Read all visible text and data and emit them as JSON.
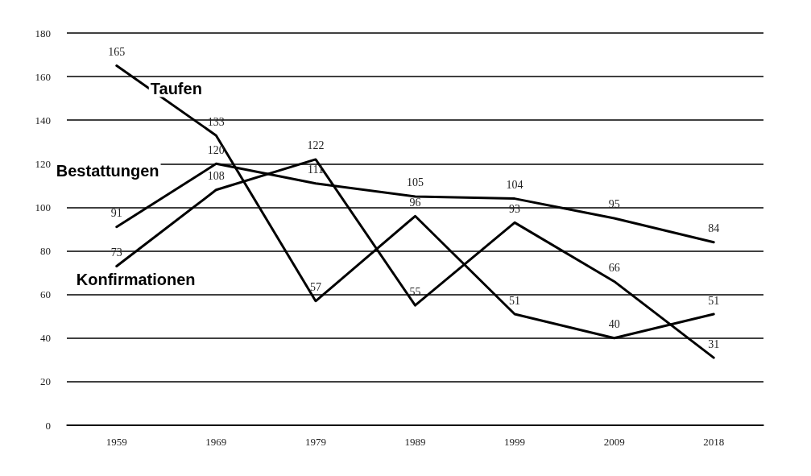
{
  "chart_data": {
    "type": "line",
    "categories": [
      "1959",
      "1969",
      "1979",
      "1989",
      "1999",
      "2009",
      "2018"
    ],
    "series": [
      {
        "name": "Taufen",
        "color": "#000000",
        "values": [
          165,
          133,
          57,
          96,
          51,
          40,
          51
        ]
      },
      {
        "name": "Bestattungen",
        "color": "#000000",
        "values": [
          91,
          120,
          111,
          105,
          104,
          95,
          84
        ]
      },
      {
        "name": "Konfirmationen",
        "color": "#000000",
        "values": [
          73,
          108,
          122,
          55,
          93,
          66,
          31
        ]
      }
    ],
    "ylim": [
      0,
      180
    ],
    "yticks": [
      0,
      20,
      40,
      60,
      80,
      100,
      120,
      140,
      160,
      180
    ],
    "grid": "y",
    "data_labels": true,
    "marker": "none",
    "line_style": "solid"
  }
}
